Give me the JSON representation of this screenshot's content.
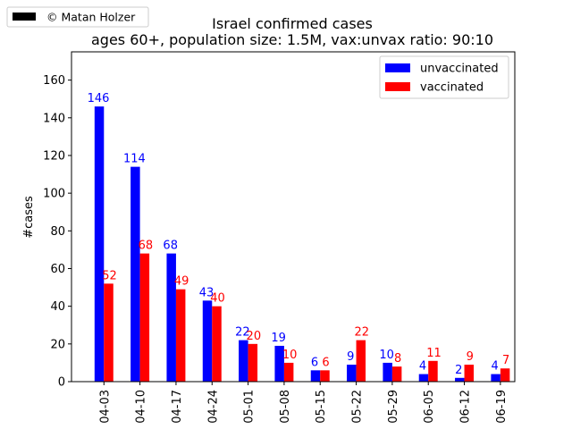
{
  "credit_legend": {
    "label": "© Matan Holzer",
    "swatch_color": "#000000"
  },
  "chart_data": {
    "type": "bar",
    "title": "Israel confirmed cases",
    "subtitle": "ages 60+, population size: 1.5M, vax:unvax ratio: 90:10",
    "xlabel": "",
    "ylabel": "#cases",
    "ylim": [
      0,
      175
    ],
    "yticks": [
      0,
      20,
      40,
      60,
      80,
      100,
      120,
      140,
      160
    ],
    "grid": false,
    "legend_position": "top-right",
    "categories": [
      "04-03",
      "04-10",
      "04-17",
      "04-24",
      "05-01",
      "05-08",
      "05-15",
      "05-22",
      "05-29",
      "06-05",
      "06-12",
      "06-19"
    ],
    "series": [
      {
        "name": "unvaccinated",
        "color": "#0000ff",
        "values": [
          146,
          114,
          68,
          43,
          22,
          19,
          6,
          9,
          10,
          4,
          2,
          4
        ]
      },
      {
        "name": "vaccinated",
        "color": "#ff0000",
        "values": [
          52,
          68,
          49,
          40,
          20,
          10,
          6,
          22,
          8,
          11,
          9,
          7
        ]
      }
    ]
  }
}
